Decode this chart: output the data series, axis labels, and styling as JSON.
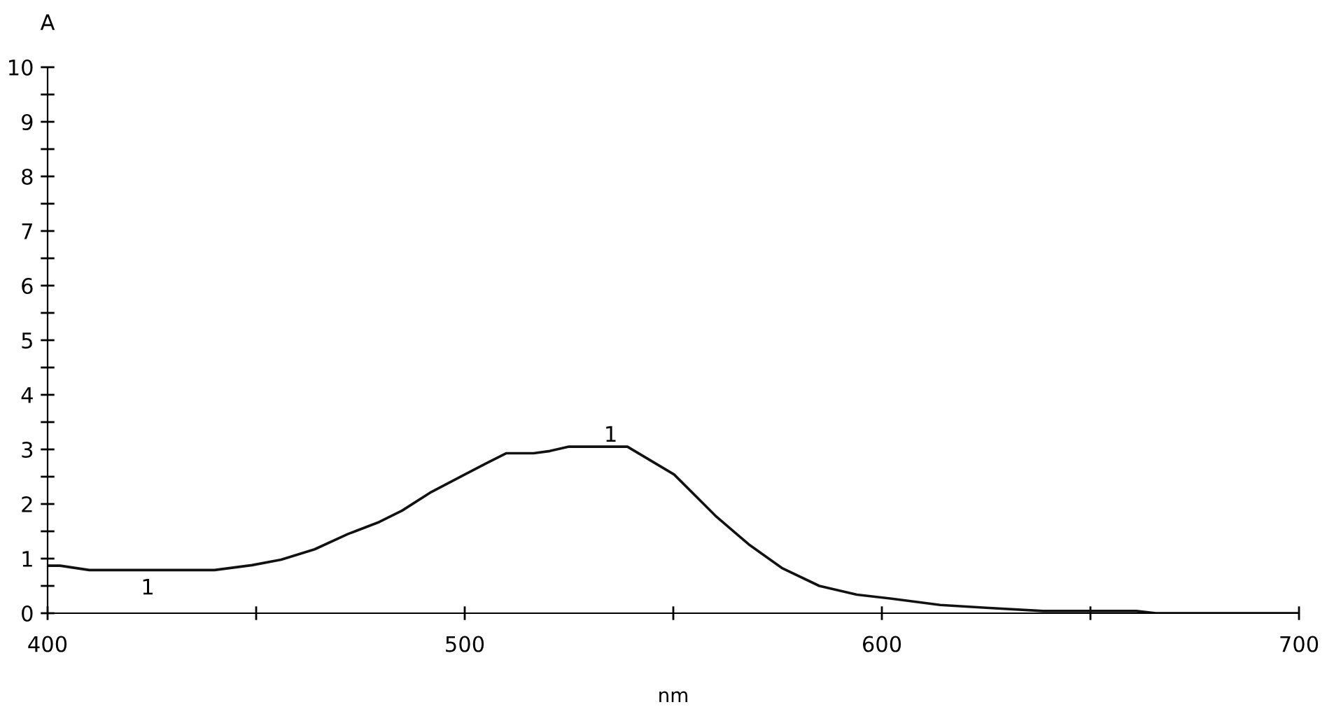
{
  "chart_data": {
    "type": "line",
    "xlabel": "nm",
    "ylabel": "A",
    "x": [
      400,
      403,
      410,
      440,
      449,
      456,
      464,
      472,
      479.5,
      485,
      492,
      500,
      505,
      510,
      516.5,
      520.4,
      525,
      539,
      550.2,
      560.3,
      568.1,
      576,
      585,
      594,
      603,
      614,
      625,
      638.7,
      661,
      665.7,
      700
    ],
    "series": [
      {
        "color": "#111111",
        "values": [
          0.87,
          0.87,
          0.79,
          0.79,
          0.88,
          0.98,
          1.17,
          1.45,
          1.67,
          1.88,
          2.22,
          2.54,
          2.74,
          2.93,
          2.93,
          2.97,
          3.05,
          3.05,
          2.54,
          1.77,
          1.26,
          0.83,
          0.5,
          0.34,
          0.26,
          0.15,
          0.1,
          0.04,
          0.04,
          0.0,
          0.0
        ]
      }
    ],
    "xlim": [
      400,
      700
    ],
    "ylim": [
      0,
      10
    ],
    "xticks": [
      400,
      {
        "value": 450,
        "label": null
      },
      500,
      {
        "value": 550,
        "label": null
      },
      600,
      {
        "value": 650,
        "label": null
      },
      700
    ],
    "yticks": [
      0,
      {
        "value": 0.5,
        "label": null
      },
      1,
      {
        "value": 1.5,
        "label": null
      },
      2,
      {
        "value": 2.5,
        "label": null
      },
      3,
      {
        "value": 3.5,
        "label": null
      },
      4,
      {
        "value": 4.5,
        "label": null
      },
      5,
      {
        "value": 5.5,
        "label": null
      },
      6,
      {
        "value": 6.5,
        "label": null
      },
      7,
      {
        "value": 7.5,
        "label": null
      },
      8,
      {
        "value": 8.5,
        "label": null
      },
      9,
      {
        "value": 9.5,
        "label": null
      },
      10
    ],
    "annotations": [
      "1",
      "1"
    ],
    "grid": false,
    "legend": false,
    "marker": "none",
    "line_style": "solid"
  }
}
